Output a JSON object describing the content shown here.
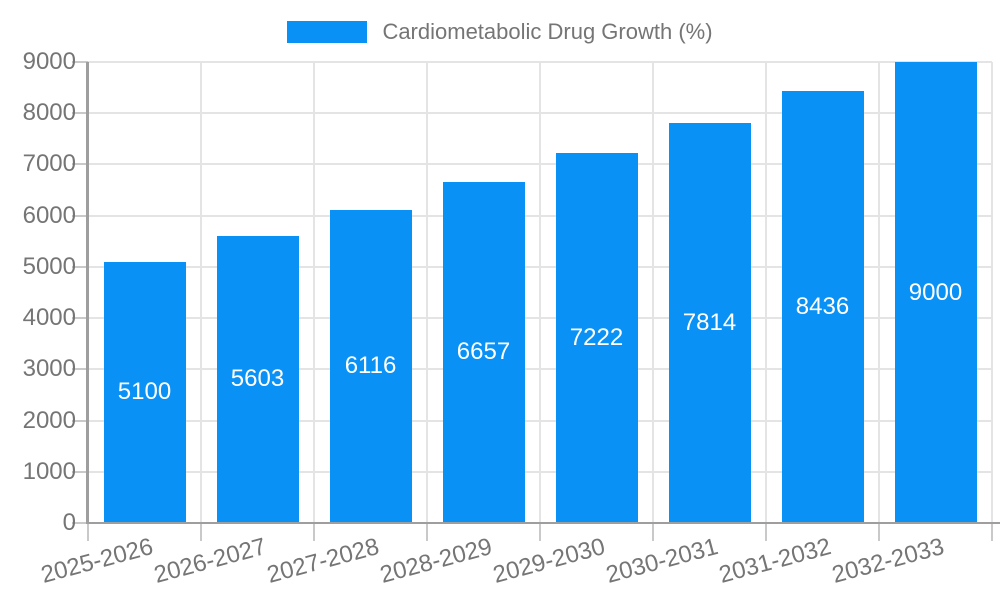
{
  "chart_data": {
    "type": "bar",
    "title": "Cardiometabolic Drug Growth (%)",
    "categories": [
      "2025-2026",
      "2026-2027",
      "2027-2028",
      "2028-2029",
      "2029-2030",
      "2030-2031",
      "2031-2032",
      "2032-2033"
    ],
    "values": [
      5100,
      5603,
      6116,
      6657,
      7222,
      7814,
      8436,
      9000
    ],
    "xlabel": "",
    "ylabel": "",
    "ylim": [
      0,
      9000
    ],
    "yticks": [
      0,
      1000,
      2000,
      3000,
      4000,
      5000,
      6000,
      7000,
      8000,
      9000
    ],
    "grid": true,
    "legend_position": "top",
    "x_label_rotation_deg": -15,
    "colors": {
      "bar": "#0991F6",
      "value_label": "#FFFFFF",
      "axis": "#9E9E9E",
      "grid": "#E4E4E4",
      "tick": "#C9C9C9",
      "text": "#757575",
      "background": "#FFFFFF"
    }
  }
}
